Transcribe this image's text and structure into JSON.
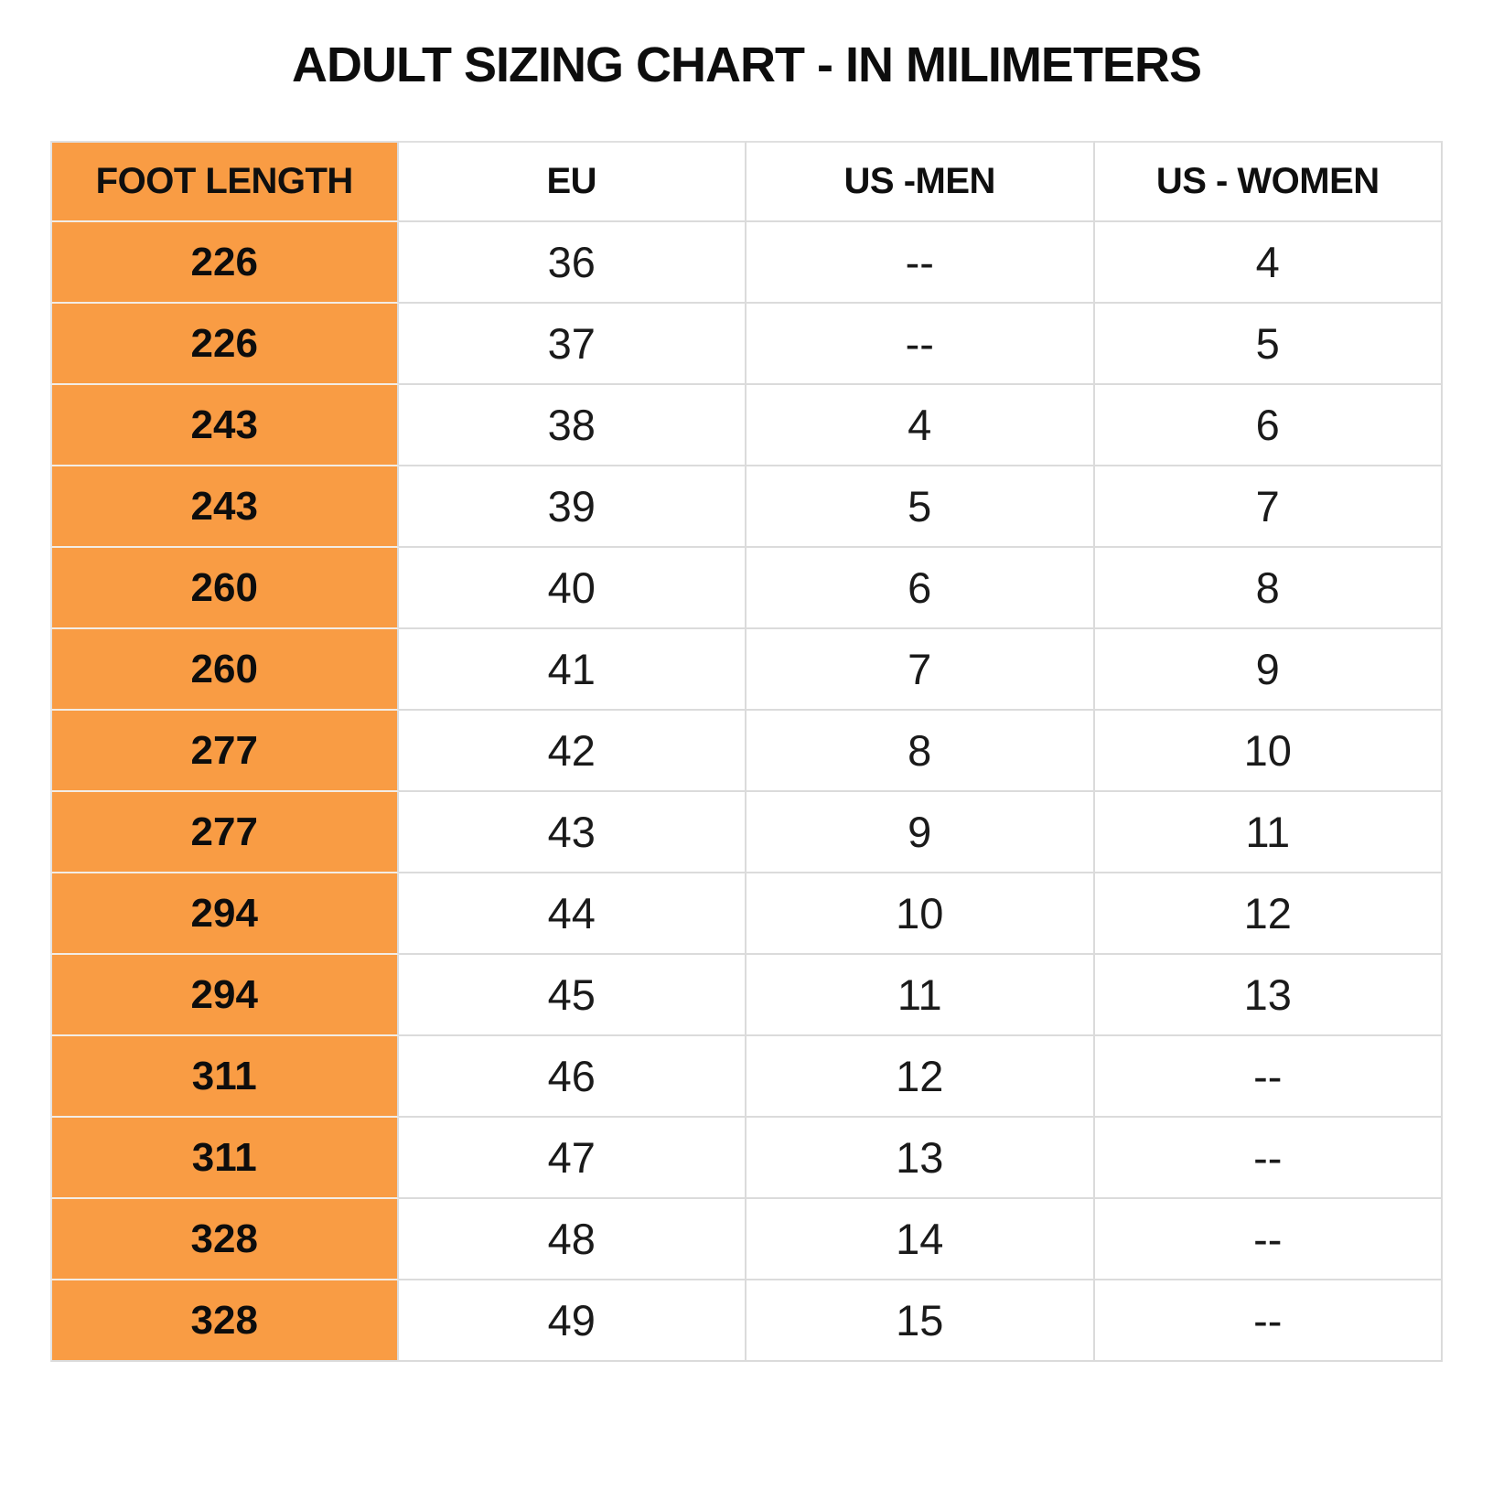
{
  "title": "ADULT SIZING CHART - IN MILIMETERS",
  "colors": {
    "highlight_fill": "#F99C44",
    "grid_line": "#DBDBDB",
    "orange_cell_separator": "#F3EDE6",
    "text": "#161616"
  },
  "chart_data": {
    "type": "table",
    "title": "ADULT SIZING CHART - IN MILIMETERS",
    "columns": [
      "FOOT LENGTH",
      "EU",
      "US -MEN",
      "US - WOMEN"
    ],
    "highlight_column": "FOOT LENGTH",
    "empty_marker": "--",
    "rows": [
      [
        "226",
        "36",
        "--",
        "4"
      ],
      [
        "226",
        "37",
        "--",
        "5"
      ],
      [
        "243",
        "38",
        "4",
        "6"
      ],
      [
        "243",
        "39",
        "5",
        "7"
      ],
      [
        "260",
        "40",
        "6",
        "8"
      ],
      [
        "260",
        "41",
        "7",
        "9"
      ],
      [
        "277",
        "42",
        "8",
        "10"
      ],
      [
        "277",
        "43",
        "9",
        "11"
      ],
      [
        "294",
        "44",
        "10",
        "12"
      ],
      [
        "294",
        "45",
        "11",
        "13"
      ],
      [
        "311",
        "46",
        "12",
        "--"
      ],
      [
        "311",
        "47",
        "13",
        "--"
      ],
      [
        "328",
        "48",
        "14",
        "--"
      ],
      [
        "328",
        "49",
        "15",
        "--"
      ]
    ]
  }
}
